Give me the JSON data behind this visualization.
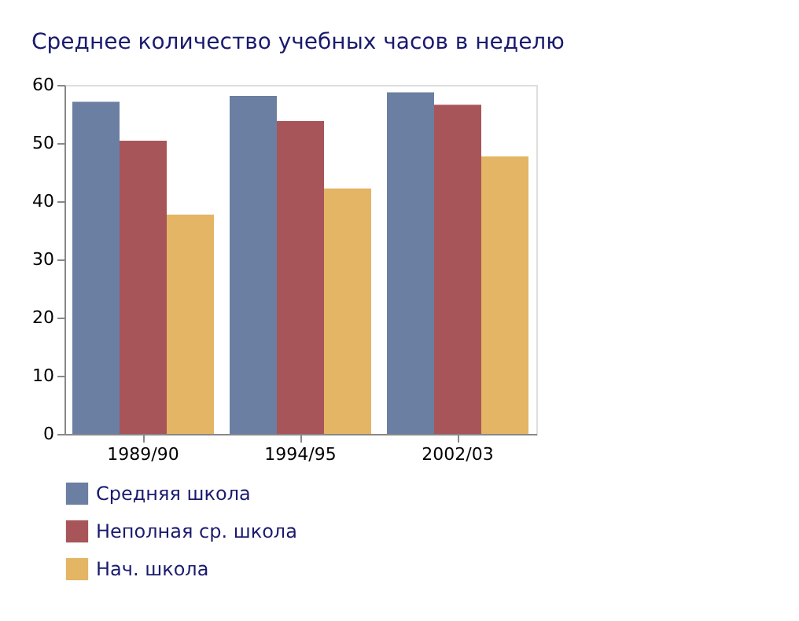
{
  "chart_data": {
    "type": "bar",
    "title": "Среднее количество учебных часов в неделю",
    "categories": [
      "1989/90",
      "1994/95",
      "2002/03"
    ],
    "series": [
      {
        "name": "Средняя школа",
        "color": "#6b7fa3",
        "values": [
          57.1,
          58.1,
          58.7
        ]
      },
      {
        "name": "Неполная ср. школа",
        "color": "#a8555a",
        "values": [
          50.4,
          53.8,
          56.6
        ]
      },
      {
        "name": "Нач. школа",
        "color": "#e3b564",
        "values": [
          37.7,
          42.2,
          47.7
        ]
      }
    ],
    "ylim": [
      0,
      60
    ],
    "yticks": [
      0,
      10,
      20,
      30,
      40,
      50,
      60
    ],
    "grid": false,
    "legend": "bottom"
  }
}
